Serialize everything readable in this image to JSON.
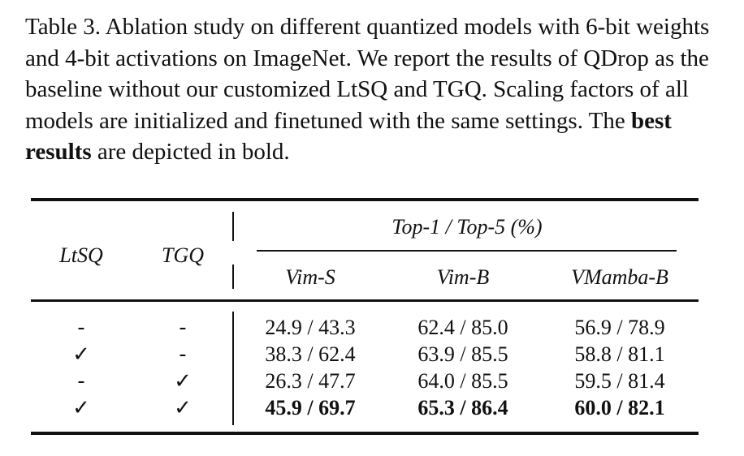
{
  "caption": {
    "part1": "Table 3.  Ablation study on different quantized models with 6-bit weights and 4-bit activations on ImageNet.  We report the results of QDrop as the baseline without our customized LtSQ and TGQ. Scaling factors of all models are initialized and finetuned with the same settings. The ",
    "bold": "best results",
    "part2": " are depicted in bold."
  },
  "table": {
    "headers": {
      "ltsq": "LtSQ",
      "tgq": "TGQ",
      "group": "Top-1 / Top-5 (%)",
      "models": [
        "Vim-S",
        "Vim-B",
        "VMamba-B"
      ]
    },
    "rows": [
      {
        "ltsq": "-",
        "tgq": "-",
        "values": [
          "24.9 / 43.3",
          "62.4 / 85.0",
          "56.9 / 78.9"
        ],
        "bold": false
      },
      {
        "ltsq": "✓",
        "tgq": "-",
        "values": [
          "38.3 / 62.4",
          "63.9 / 85.5",
          "58.8 / 81.1"
        ],
        "bold": false
      },
      {
        "ltsq": "-",
        "tgq": "✓",
        "values": [
          "26.3 / 47.7",
          "64.0 / 85.5",
          "59.5 / 81.4"
        ],
        "bold": false
      },
      {
        "ltsq": "✓",
        "tgq": "✓",
        "values": [
          "45.9 / 69.7",
          "65.3 / 86.4",
          "60.0 / 82.1"
        ],
        "bold": true
      }
    ]
  }
}
